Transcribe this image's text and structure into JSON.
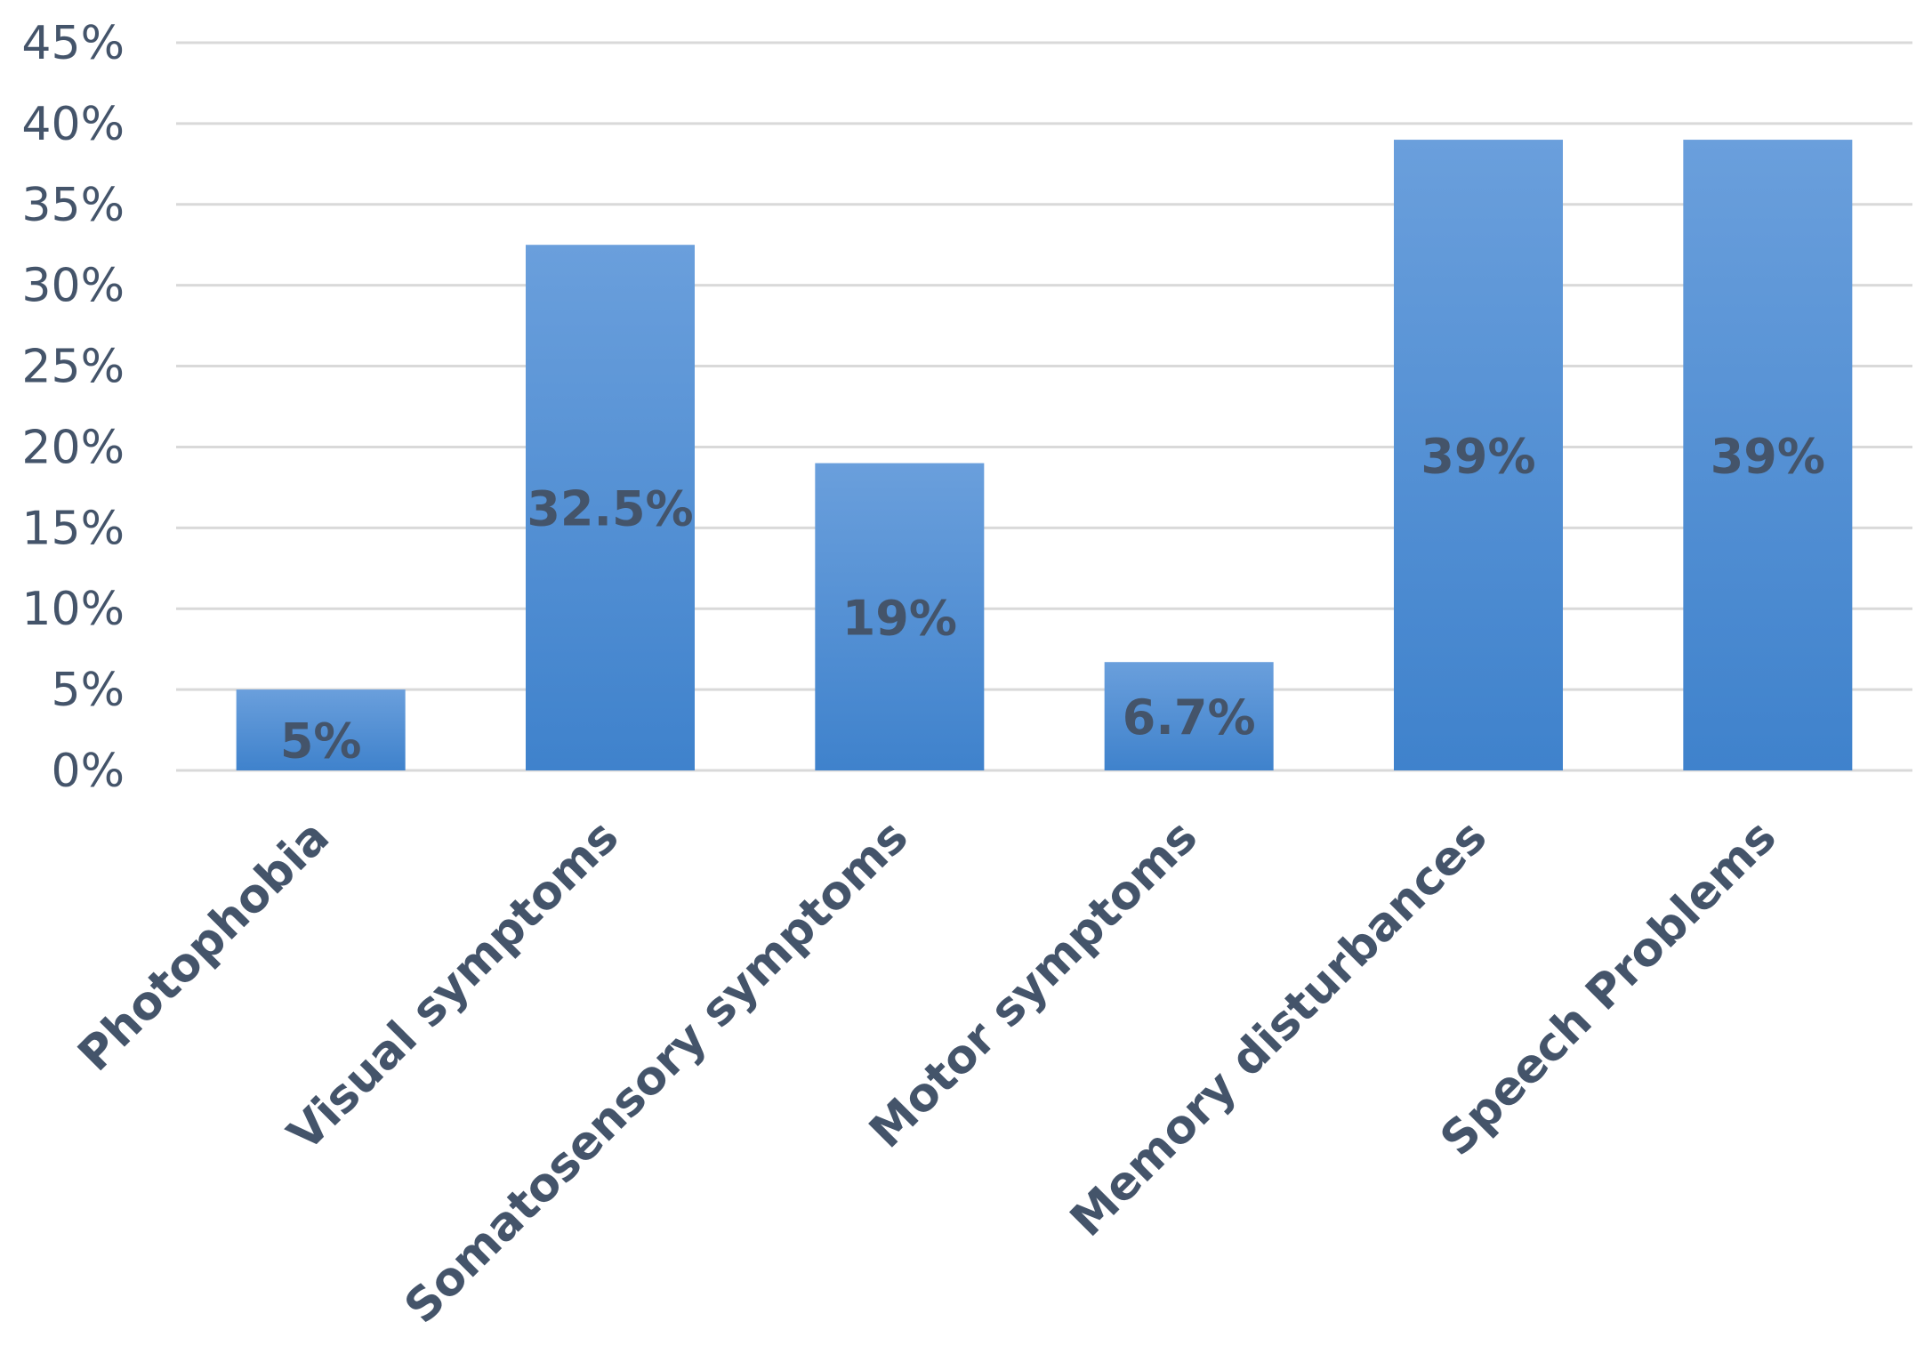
{
  "chart_data": {
    "type": "bar",
    "title": "",
    "xlabel": "",
    "ylabel": "",
    "categories": [
      "Photophobia",
      "Visual symptoms",
      "Somatosensory symptoms",
      "Motor symptoms",
      "Memory disturbances",
      "Speech Problems"
    ],
    "values": [
      5,
      32.5,
      19,
      6.7,
      39,
      39
    ],
    "data_labels": [
      "5%",
      "32.5%",
      "19%",
      "6.7%",
      "39%",
      "39%"
    ],
    "ylim": [
      0,
      45
    ],
    "yticks": [
      0,
      5,
      10,
      15,
      20,
      25,
      30,
      35,
      40,
      45
    ],
    "ytick_labels": [
      "0%",
      "5%",
      "10%",
      "15%",
      "20%",
      "25%",
      "30%",
      "35%",
      "40%",
      "45%"
    ],
    "grid": true,
    "legend": "none",
    "colors": {
      "bar_top": "#6a9fdc",
      "bar_bottom": "#3f82cc",
      "text": "#44546a",
      "grid": "#d9d9d9"
    }
  }
}
